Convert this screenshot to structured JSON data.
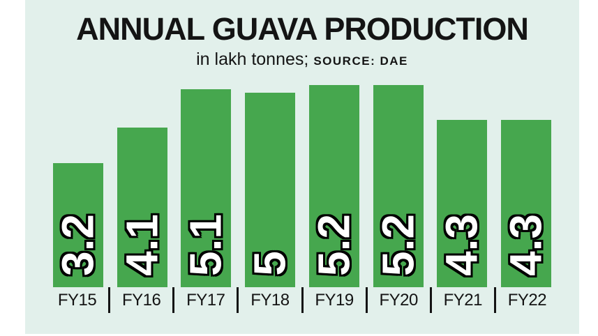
{
  "header": {
    "title": "ANNUAL GUAVA PRODUCTION",
    "unit_label": "in lakh tonnes;",
    "source_label": "SOURCE: DAE"
  },
  "chart_data": {
    "type": "bar",
    "title": "ANNUAL GUAVA PRODUCTION",
    "subtitle": "in lakh tonnes; SOURCE: DAE",
    "unit": "lakh tonnes",
    "source": "DAE",
    "categories": [
      "FY15",
      "FY16",
      "FY17",
      "FY18",
      "FY19",
      "FY20",
      "FY21",
      "FY22"
    ],
    "values": [
      3.2,
      4.1,
      5.1,
      5,
      5.2,
      5.2,
      4.3,
      4.3
    ],
    "xlabel": "",
    "ylabel": "",
    "ylim": [
      0,
      5.2
    ],
    "grid": false,
    "legend": false,
    "value_labels": "inside bars, rotated 90 degrees counterclockwise, white fill with black outline",
    "tick_style": "vertical divider lines between category labels",
    "colors": {
      "bar": "#46a74e",
      "panel_background": "#e2f0eb",
      "page_background": "#ffffff",
      "text": "#141414",
      "tick": "#141414",
      "value_text": "#ffffff",
      "value_outline": "#000000"
    }
  }
}
